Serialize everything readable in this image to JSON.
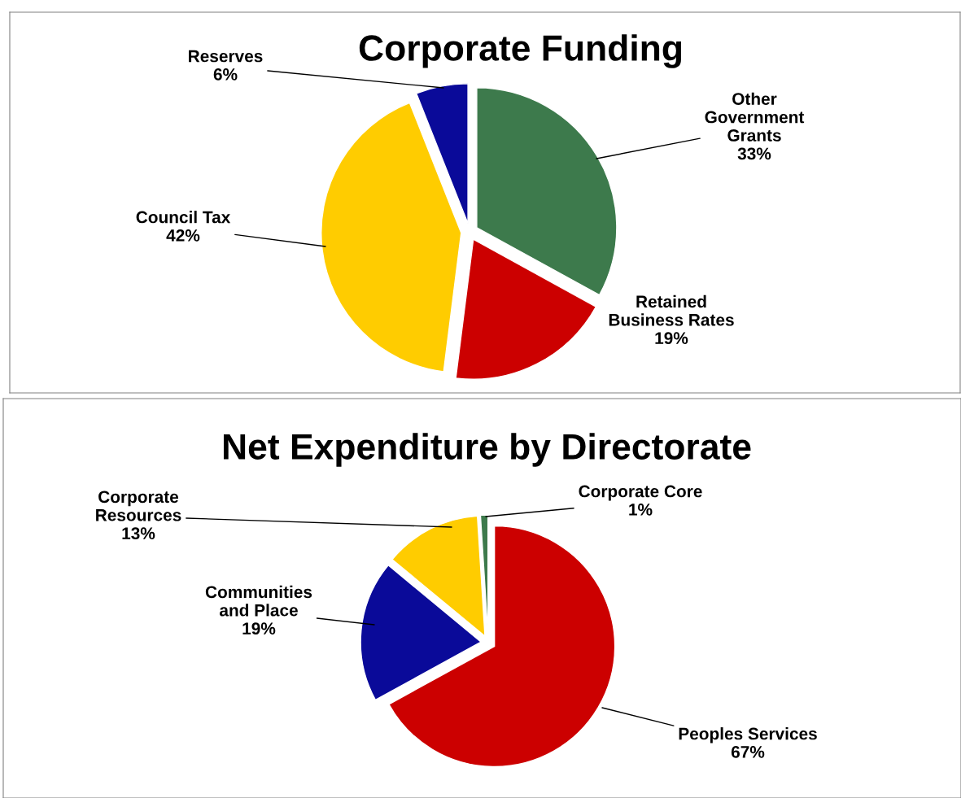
{
  "chart_data": [
    {
      "type": "pie",
      "title": "Corporate Funding",
      "categories": [
        "Other\nGovernment\nGrants",
        "Retained\nBusiness Rates",
        "Council Tax",
        "Reserves"
      ],
      "values": [
        33,
        19,
        42,
        6
      ],
      "value_labels": [
        "33%",
        "19%",
        "42%",
        "6%"
      ],
      "colors": [
        "#3d7a4c",
        "#cc0000",
        "#ffcc00",
        "#0a0a99"
      ],
      "legend": false
    },
    {
      "type": "pie",
      "title": "Net Expenditure by Directorate",
      "categories": [
        "Peoples Services",
        "Communities\nand Place",
        "Corporate\nResources",
        "Corporate Core"
      ],
      "values": [
        67,
        19,
        13,
        1
      ],
      "value_labels": [
        "67%",
        "19%",
        "13%",
        "1%"
      ],
      "colors": [
        "#cc0000",
        "#0a0a99",
        "#ffcc00",
        "#3d7a4c"
      ],
      "legend": false
    }
  ]
}
